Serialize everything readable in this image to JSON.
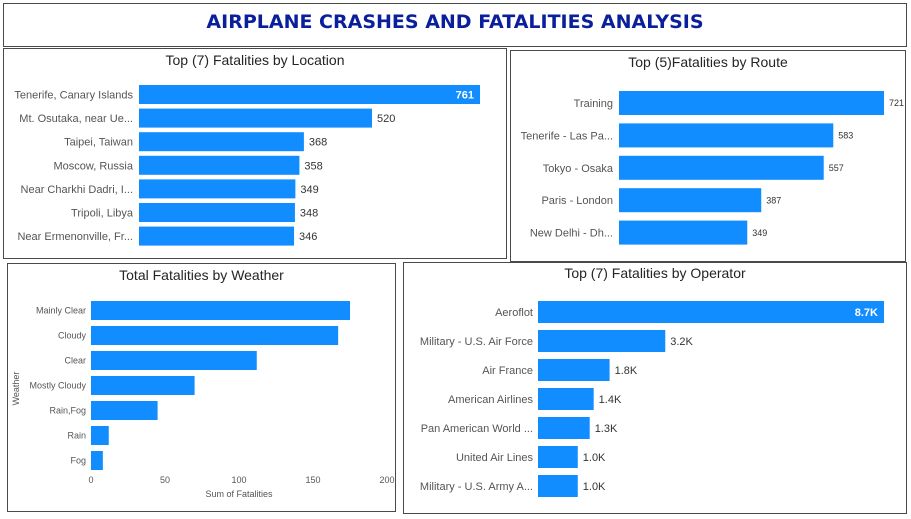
{
  "header": {
    "title": "AIRPLANE CRASHES AND FATALITIES ANALYSIS"
  },
  "colors": {
    "bar": "#118DFF",
    "title": "#0A1F9C"
  },
  "chart_data": [
    {
      "id": "location",
      "type": "bar",
      "orientation": "horizontal",
      "title": "Top (7) Fatalities by Location",
      "categories": [
        "Tenerife, Canary Islands",
        "Mt. Osutaka, near Ue...",
        "Taipei, Taiwan",
        "Moscow, Russia",
        "Near Charkhi Dadri, I...",
        "Tripoli, Libya",
        "Near Ermenonville, Fr..."
      ],
      "values": [
        761,
        520,
        368,
        358,
        349,
        348,
        346
      ],
      "data_labels": [
        "761",
        "520",
        "368",
        "358",
        "349",
        "348",
        "346"
      ],
      "xlim": [
        0,
        761
      ]
    },
    {
      "id": "route",
      "type": "bar",
      "orientation": "horizontal",
      "title": "Top (5)Fatalities by Route",
      "categories": [
        "Training",
        "Tenerife - Las Pa...",
        "Tokyo - Osaka",
        "Paris - London",
        "New Delhi - Dh..."
      ],
      "values": [
        721,
        583,
        557,
        387,
        349
      ],
      "data_labels": [
        "721",
        "583",
        "557",
        "387",
        "349"
      ],
      "xlim": [
        0,
        721
      ]
    },
    {
      "id": "weather",
      "type": "bar",
      "orientation": "horizontal",
      "title": "Total Fatalities by Weather",
      "categories": [
        "Mainly Clear",
        "Cloudy",
        "Clear",
        "Mostly Cloudy",
        "Rain,Fog",
        "Rain",
        "Fog"
      ],
      "values": [
        175,
        167,
        112,
        70,
        45,
        12,
        8
      ],
      "xlabel": "Sum of Fatalities",
      "ylabel": "Weather",
      "xlim": [
        0,
        200
      ],
      "xticks": [
        "0",
        "50",
        "100",
        "150",
        "200"
      ],
      "xtick_values": [
        0,
        50,
        100,
        150,
        200
      ]
    },
    {
      "id": "operator",
      "type": "bar",
      "orientation": "horizontal",
      "title": "Top (7) Fatalities by Operator",
      "categories": [
        "Aeroflot",
        "Military - U.S. Air Force",
        "Air France",
        "American Airlines",
        "Pan American World ...",
        "United Air Lines",
        "Military - U.S. Army A..."
      ],
      "values": [
        8700,
        3200,
        1800,
        1400,
        1300,
        1000,
        1000
      ],
      "data_labels": [
        "8.7K",
        "3.2K",
        "1.8K",
        "1.4K",
        "1.3K",
        "1.0K",
        "1.0K"
      ],
      "xlim": [
        0,
        8700
      ]
    }
  ]
}
